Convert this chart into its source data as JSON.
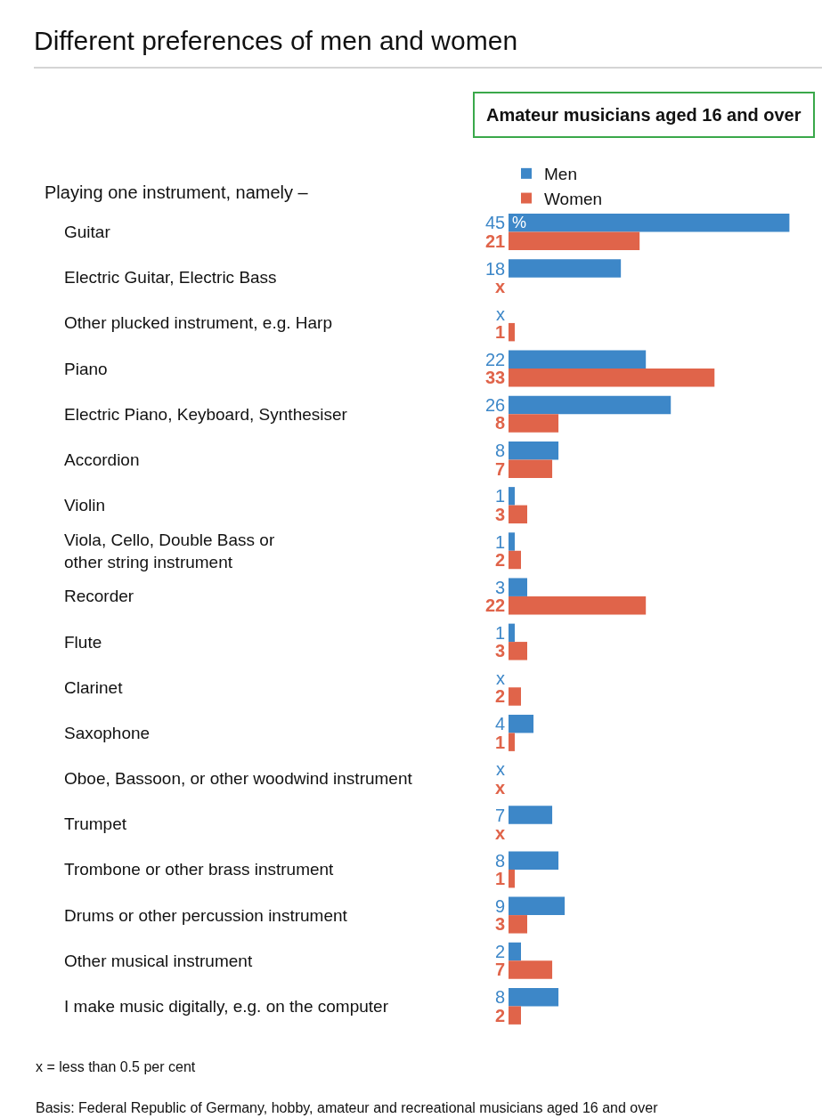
{
  "chart_data": {
    "type": "bar",
    "orientation": "horizontal",
    "title": "Different preferences of men and women",
    "subtitle": "Amateur musicians aged 16 and over",
    "ylabel": "Playing one instrument, namely –",
    "categories": [
      "Guitar",
      "Electric Guitar, Electric Bass",
      "Other plucked instrument, e.g. Harp",
      "Piano",
      "Electric Piano, Keyboard, Synthesiser",
      "Accordion",
      "Violin",
      "Viola, Cello, Double Bass or other string instrument",
      "Recorder",
      "Flute",
      "Clarinet",
      "Saxophone",
      "Oboe, Bassoon, or other woodwind instrument",
      "Trumpet",
      "Trombone or other brass instrument",
      "Drums or other percussion instrument",
      "Other musical instrument",
      "I make music digitally, e.g. on the computer"
    ],
    "series": [
      {
        "name": "Men",
        "color": "#3d87c8",
        "values": [
          45,
          18,
          null,
          22,
          26,
          8,
          1,
          1,
          3,
          1,
          null,
          4,
          null,
          7,
          8,
          9,
          2,
          8
        ],
        "value_labels": [
          "45",
          "18",
          "x",
          "22",
          "26",
          "8",
          "1",
          "1",
          "3",
          "1",
          "x",
          "4",
          "x",
          "7",
          "8",
          "9",
          "2",
          "8"
        ]
      },
      {
        "name": "Women",
        "color": "#e0644a",
        "values": [
          21,
          null,
          1,
          33,
          8,
          7,
          3,
          2,
          22,
          3,
          2,
          1,
          null,
          null,
          1,
          3,
          7,
          2
        ],
        "value_labels": [
          "21",
          "x",
          "1",
          "33",
          "8",
          "7",
          "3",
          "2",
          "22",
          "3",
          "2",
          "1",
          "x",
          "x",
          "1",
          "3",
          "7",
          "2"
        ]
      }
    ],
    "annotations": [
      {
        "text": "%",
        "x": 0,
        "y": "Guitar"
      },
      "x = less than 0.5 per cent",
      "Basis: Federal Republic of Germany, hobby, amateur and recreational musicians aged 16 and over"
    ],
    "legend": "top",
    "tick_labels": "y",
    "grid": false
  }
}
